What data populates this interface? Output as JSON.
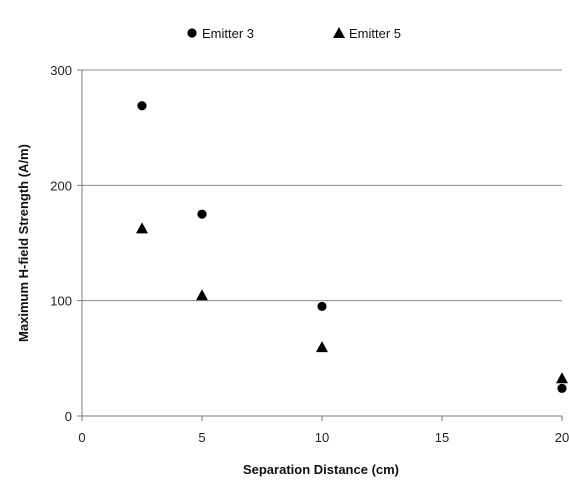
{
  "chart_data": {
    "type": "scatter",
    "xlabel": "Separation Distance (cm)",
    "ylabel": "Maximum H-field Strength (A/m)",
    "xlim": [
      0,
      20
    ],
    "ylim": [
      0,
      300
    ],
    "x_ticks": [
      0,
      5,
      10,
      15,
      20
    ],
    "y_ticks": [
      0,
      100,
      200,
      300
    ],
    "grid": "horizontal",
    "legend_position": "top",
    "series": [
      {
        "name": "Emitter 3",
        "marker": "circle",
        "color": "#000000",
        "points": [
          {
            "x": 2.5,
            "y": 269
          },
          {
            "x": 5,
            "y": 175
          },
          {
            "x": 10,
            "y": 95
          },
          {
            "x": 20,
            "y": 24
          }
        ]
      },
      {
        "name": "Emitter 5",
        "marker": "triangle",
        "color": "#000000",
        "points": [
          {
            "x": 2.5,
            "y": 162
          },
          {
            "x": 5,
            "y": 104
          },
          {
            "x": 10,
            "y": 59
          },
          {
            "x": 20,
            "y": 32
          }
        ]
      }
    ]
  }
}
